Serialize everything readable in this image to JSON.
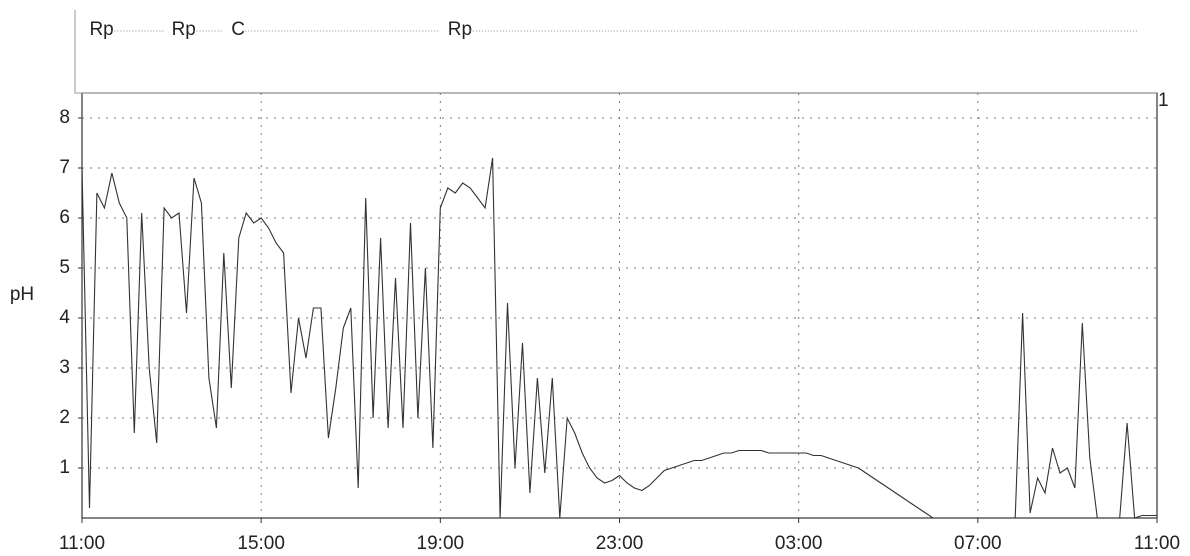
{
  "chart_data": {
    "type": "line",
    "ylabel": "pH",
    "right_label": "1",
    "color": "#333333",
    "grid": true,
    "ylim": [
      0,
      8.5
    ],
    "yticks": [
      1,
      2,
      3,
      4,
      5,
      6,
      7,
      8
    ],
    "xticks": [
      "11:00",
      "15:00",
      "19:00",
      "23:00",
      "03:00",
      "07:00",
      "11:00"
    ],
    "events": [
      {
        "label": "Rp",
        "time": "11:10"
      },
      {
        "label": "Rp",
        "time": "13:00"
      },
      {
        "label": "C",
        "time": "14:20"
      },
      {
        "label": "Rp",
        "time": "19:10"
      }
    ],
    "x": [
      "11:00",
      "11:10",
      "11:20",
      "11:30",
      "11:40",
      "11:50",
      "12:00",
      "12:10",
      "12:20",
      "12:30",
      "12:40",
      "12:50",
      "13:00",
      "13:10",
      "13:20",
      "13:30",
      "13:40",
      "13:50",
      "14:00",
      "14:10",
      "14:20",
      "14:30",
      "14:40",
      "14:50",
      "15:00",
      "15:10",
      "15:20",
      "15:30",
      "15:40",
      "15:50",
      "16:00",
      "16:10",
      "16:20",
      "16:30",
      "16:40",
      "16:50",
      "17:00",
      "17:10",
      "17:20",
      "17:30",
      "17:40",
      "17:50",
      "18:00",
      "18:10",
      "18:20",
      "18:30",
      "18:40",
      "18:50",
      "19:00",
      "19:10",
      "19:20",
      "19:30",
      "19:40",
      "19:50",
      "20:00",
      "20:10",
      "20:20",
      "20:30",
      "20:40",
      "20:50",
      "21:00",
      "21:10",
      "21:20",
      "21:30",
      "21:40",
      "21:50",
      "22:00",
      "22:10",
      "22:20",
      "22:30",
      "22:40",
      "22:50",
      "23:00",
      "23:10",
      "23:20",
      "23:30",
      "23:40",
      "23:50",
      "00:00",
      "00:10",
      "00:20",
      "00:30",
      "00:40",
      "00:50",
      "01:00",
      "01:10",
      "01:20",
      "01:30",
      "01:40",
      "01:50",
      "02:00",
      "02:10",
      "02:20",
      "02:30",
      "02:40",
      "02:50",
      "03:00",
      "03:10",
      "03:20",
      "03:30",
      "03:40",
      "03:50",
      "04:00",
      "04:10",
      "04:20",
      "04:30",
      "04:40",
      "04:50",
      "05:00",
      "05:10",
      "05:20",
      "05:30",
      "05:40",
      "05:50",
      "06:00",
      "06:10",
      "06:20",
      "06:30",
      "06:40",
      "06:50",
      "07:00",
      "07:10",
      "07:20",
      "07:30",
      "07:40",
      "07:50",
      "08:00",
      "08:10",
      "08:20",
      "08:30",
      "08:40",
      "08:50",
      "09:00",
      "09:10",
      "09:20",
      "09:30",
      "09:40",
      "09:50",
      "10:00",
      "10:10",
      "10:20",
      "10:30",
      "10:40",
      "10:50",
      "11:00"
    ],
    "values": [
      7.0,
      0.2,
      6.5,
      6.2,
      6.9,
      6.3,
      6.0,
      1.7,
      6.1,
      3.0,
      1.5,
      6.2,
      6.0,
      6.1,
      4.1,
      6.8,
      6.3,
      2.8,
      1.8,
      5.3,
      2.6,
      5.6,
      6.1,
      5.9,
      6.0,
      5.8,
      5.5,
      5.3,
      2.5,
      4.0,
      3.2,
      4.2,
      4.2,
      1.6,
      2.6,
      3.8,
      4.2,
      0.6,
      6.4,
      2.0,
      5.6,
      1.8,
      4.8,
      1.8,
      5.9,
      2.0,
      5.0,
      1.4,
      6.2,
      6.6,
      6.5,
      6.7,
      6.6,
      6.4,
      6.2,
      7.2,
      0.0,
      4.3,
      1.0,
      3.5,
      0.5,
      2.8,
      0.9,
      2.8,
      0.0,
      2.0,
      1.7,
      1.3,
      1.0,
      0.8,
      0.7,
      0.75,
      0.85,
      0.7,
      0.6,
      0.55,
      0.65,
      0.8,
      0.95,
      1.0,
      1.05,
      1.1,
      1.15,
      1.15,
      1.2,
      1.25,
      1.3,
      1.3,
      1.35,
      1.35,
      1.35,
      1.35,
      1.3,
      1.3,
      1.3,
      1.3,
      1.3,
      1.3,
      1.25,
      1.25,
      1.2,
      1.15,
      1.1,
      1.05,
      1.0,
      0.9,
      0.8,
      0.7,
      0.6,
      0.5,
      0.4,
      0.3,
      0.2,
      0.1,
      0.0,
      0.0,
      0.0,
      0.0,
      0.0,
      0.0,
      0.0,
      0.0,
      0.0,
      0.0,
      0.0,
      0.0,
      4.1,
      0.1,
      0.8,
      0.5,
      1.4,
      0.9,
      1.0,
      0.6,
      3.9,
      1.2,
      0.0,
      0.0,
      0.0,
      0.0,
      1.9,
      0.0,
      0.05,
      0.05,
      0.05
    ]
  }
}
